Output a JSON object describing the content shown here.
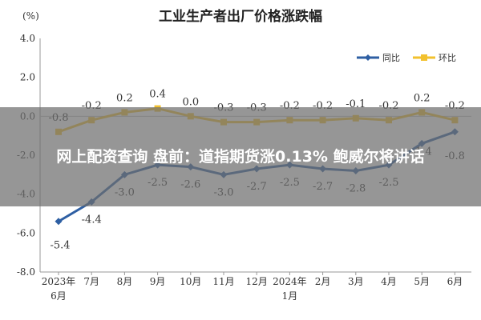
{
  "overlay": {
    "headline": "网上配资查询 盘前：道指期货涨0.13% 鲍威尔将讲话"
  },
  "chart_data": {
    "type": "line",
    "title": "工业生产者出厂价格涨跌幅",
    "ylabel": "(%)",
    "ylim": [
      -8.0,
      4.0
    ],
    "yticks": [
      "4.0",
      "2.0",
      "0.0",
      "-2.0",
      "-4.0",
      "-6.0",
      "-8.0"
    ],
    "categories": [
      [
        "2023年",
        "6月"
      ],
      [
        "7月"
      ],
      [
        "8月"
      ],
      [
        "9月"
      ],
      [
        "10月"
      ],
      [
        "11月"
      ],
      [
        "12月"
      ],
      [
        "2024年",
        "1月"
      ],
      [
        "2月"
      ],
      [
        "3月"
      ],
      [
        "4月"
      ],
      [
        "5月"
      ],
      [
        "6月"
      ]
    ],
    "legend_position": "top-right",
    "grid": false,
    "series": [
      {
        "name": "同比",
        "color": "#2e5fa3",
        "values": [
          -5.4,
          -4.4,
          -3.0,
          -2.5,
          -2.6,
          -3.0,
          -2.7,
          -2.5,
          -2.7,
          -2.8,
          -2.5,
          -1.4,
          -0.8
        ],
        "labels": [
          "-5.4",
          "-4.4",
          "-3.0",
          "-2.5",
          "-2.6",
          "-3.0",
          "-2.7",
          "-2.5",
          "-2.7",
          "-2.8",
          "-2.5",
          "-1.4",
          "-0.8"
        ]
      },
      {
        "name": "环比",
        "color": "#f2c12e",
        "values": [
          -0.8,
          -0.2,
          0.2,
          0.4,
          0.0,
          -0.3,
          -0.3,
          -0.2,
          -0.2,
          -0.1,
          -0.2,
          0.2,
          -0.2
        ],
        "labels": [
          "-0.8",
          "-0.2",
          "0.2",
          "0.4",
          "0.0",
          "-0.3",
          "-0.3",
          "-0.2",
          "-0.2",
          "-0.1",
          "-0.2",
          "0.2",
          "-0.2"
        ]
      }
    ]
  }
}
